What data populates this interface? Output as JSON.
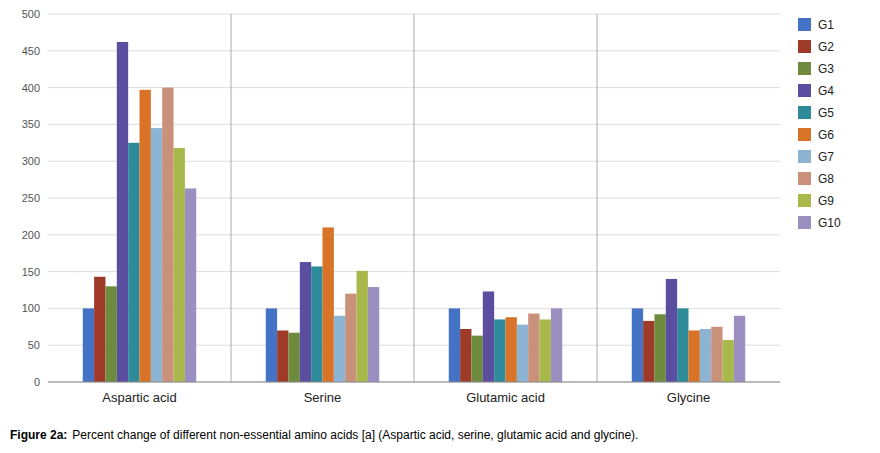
{
  "chart_data": {
    "type": "bar",
    "categories": [
      "Aspartic acid",
      "Serine",
      "Glutamic acid",
      "Glycine"
    ],
    "series": [
      {
        "name": "G1",
        "color": "#4472C4",
        "values": [
          100,
          100,
          100,
          100
        ]
      },
      {
        "name": "G2",
        "color": "#9E3B28",
        "values": [
          143,
          70,
          72,
          83
        ]
      },
      {
        "name": "G3",
        "color": "#6E8B3D",
        "values": [
          130,
          67,
          63,
          92
        ]
      },
      {
        "name": "G4",
        "color": "#5B4EA0",
        "values": [
          462,
          163,
          123,
          140
        ]
      },
      {
        "name": "G5",
        "color": "#2E8B9A",
        "values": [
          325,
          157,
          85,
          100
        ]
      },
      {
        "name": "G6",
        "color": "#D87327",
        "values": [
          397,
          210,
          88,
          70
        ]
      },
      {
        "name": "G7",
        "color": "#8EB4D4",
        "values": [
          345,
          90,
          78,
          72
        ]
      },
      {
        "name": "G8",
        "color": "#C9907A",
        "values": [
          400,
          120,
          93,
          75
        ]
      },
      {
        "name": "G9",
        "color": "#A8B84A",
        "values": [
          318,
          151,
          85,
          57
        ]
      },
      {
        "name": "G10",
        "color": "#9B8EC0",
        "values": [
          263,
          129,
          100,
          90
        ]
      }
    ],
    "ylim": [
      0,
      500
    ],
    "yticks": [
      0,
      50,
      100,
      150,
      200,
      250,
      300,
      350,
      400,
      450,
      500
    ],
    "grid": true,
    "legend": "right",
    "annotations": [
      "Figure 2a:",
      "Percent change of different non-essential amino acids [a] (Aspartic acid, serine, glutamic acid and glycine)."
    ]
  }
}
